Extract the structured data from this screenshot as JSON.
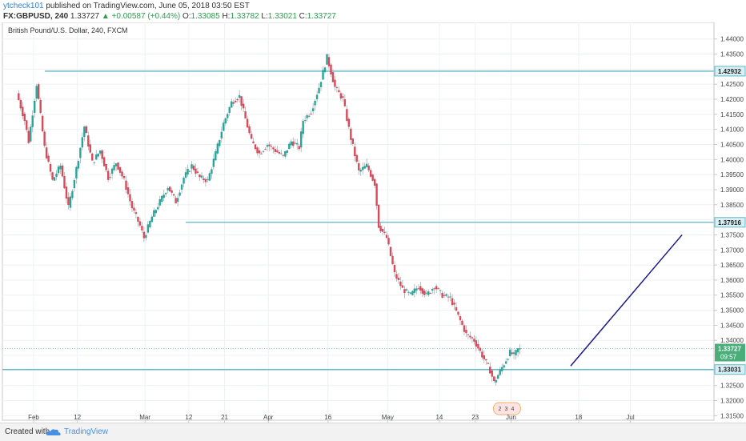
{
  "header": {
    "user": "ytcheck101",
    "published": "published on TradingView.com, June 05, 2018 03:50 EST",
    "symbol": "FX:GBPUSD, 240",
    "last": "1.33727",
    "change": "+0.00587 (+0.44%)",
    "o_label": "O:",
    "o_value": "1.33085",
    "h_label": "H:",
    "h_value": "1.33782",
    "l_label": "L:",
    "l_value": "1.33021",
    "c_label": "C:",
    "c_value": "1.33727"
  },
  "footer": {
    "created_with": "Created with",
    "brand": "TradingView"
  },
  "colors": {
    "up": "#26a69a",
    "down": "#d9495a",
    "hline": "#5fb7c8",
    "projection": "#1a1a8c",
    "dotted": "#7fd1c3"
  },
  "chart_data": {
    "type": "candlestick",
    "title": "British Pound/U.S. Dollar, 240, FXCM",
    "ylim": [
      1.3135,
      1.4455
    ],
    "y_ticks": [
      1.315,
      1.32,
      1.325,
      1.33,
      1.335,
      1.34,
      1.345,
      1.35,
      1.355,
      1.36,
      1.365,
      1.37,
      1.375,
      1.38,
      1.385,
      1.39,
      1.395,
      1.4,
      1.405,
      1.41,
      1.415,
      1.42,
      1.425,
      1.43,
      1.435,
      1.44
    ],
    "y_tick_labels": [
      "1.31500",
      "1.32000",
      "1.32500",
      "1.33000",
      "1.33500",
      "1.34000",
      "1.34500",
      "1.35000",
      "1.35500",
      "1.36000",
      "1.36500",
      "1.37000",
      "1.37500",
      "1.38000",
      "1.38500",
      "1.39000",
      "1.39500",
      "1.40000",
      "1.40500",
      "1.41000",
      "1.41500",
      "1.42000",
      "1.42500",
      "1.43000",
      "1.43500",
      "1.44000"
    ],
    "x_ticks": [
      {
        "label": "Feb",
        "day": 0
      },
      {
        "label": "12",
        "day": 11
      },
      {
        "label": "Mar",
        "day": 28
      },
      {
        "label": "12",
        "day": 39
      },
      {
        "label": "21",
        "day": 48
      },
      {
        "label": "Apr",
        "day": 59
      },
      {
        "label": "16",
        "day": 74
      },
      {
        "label": "May",
        "day": 89
      },
      {
        "label": "14",
        "day": 102
      },
      {
        "label": "23",
        "day": 111
      },
      {
        "label": "Jun",
        "day": 120
      },
      {
        "label": "18",
        "day": 137
      },
      {
        "label": "Jul",
        "day": 150
      }
    ],
    "horizontal_lines": [
      {
        "price": 1.42932,
        "label": "1.42932"
      },
      {
        "price": 1.37916,
        "label": "1.37916"
      },
      {
        "price": 1.33031,
        "label": "1.33031"
      }
    ],
    "current_price": {
      "price": 1.33727,
      "label": "1.33727",
      "countdown": "09:57"
    },
    "projection": {
      "from": {
        "day": 135,
        "price": 1.3315
      },
      "to": {
        "day": 163,
        "price": 1.375
      }
    },
    "event_markers": [
      "2",
      "3",
      "4"
    ],
    "price_path": [
      {
        "day": -4,
        "price": 1.422
      },
      {
        "day": -2,
        "price": 1.413
      },
      {
        "day": -1,
        "price": 1.406
      },
      {
        "day": 1,
        "price": 1.425
      },
      {
        "day": 3,
        "price": 1.404
      },
      {
        "day": 5,
        "price": 1.393
      },
      {
        "day": 7,
        "price": 1.398
      },
      {
        "day": 9,
        "price": 1.384
      },
      {
        "day": 11,
        "price": 1.397
      },
      {
        "day": 13,
        "price": 1.411
      },
      {
        "day": 15,
        "price": 1.399
      },
      {
        "day": 17,
        "price": 1.403
      },
      {
        "day": 19,
        "price": 1.394
      },
      {
        "day": 21,
        "price": 1.399
      },
      {
        "day": 23,
        "price": 1.393
      },
      {
        "day": 25,
        "price": 1.384
      },
      {
        "day": 27,
        "price": 1.378
      },
      {
        "day": 28,
        "price": 1.374
      },
      {
        "day": 30,
        "price": 1.381
      },
      {
        "day": 32,
        "price": 1.386
      },
      {
        "day": 34,
        "price": 1.391
      },
      {
        "day": 36,
        "price": 1.386
      },
      {
        "day": 38,
        "price": 1.394
      },
      {
        "day": 40,
        "price": 1.398
      },
      {
        "day": 42,
        "price": 1.394
      },
      {
        "day": 44,
        "price": 1.393
      },
      {
        "day": 46,
        "price": 1.402
      },
      {
        "day": 48,
        "price": 1.412
      },
      {
        "day": 50,
        "price": 1.419
      },
      {
        "day": 52,
        "price": 1.421
      },
      {
        "day": 53,
        "price": 1.416
      },
      {
        "day": 55,
        "price": 1.406
      },
      {
        "day": 57,
        "price": 1.402
      },
      {
        "day": 59,
        "price": 1.405
      },
      {
        "day": 61,
        "price": 1.403
      },
      {
        "day": 63,
        "price": 1.401
      },
      {
        "day": 65,
        "price": 1.406
      },
      {
        "day": 67,
        "price": 1.404
      },
      {
        "day": 68,
        "price": 1.413
      },
      {
        "day": 70,
        "price": 1.416
      },
      {
        "day": 72,
        "price": 1.424
      },
      {
        "day": 74,
        "price": 1.434
      },
      {
        "day": 76,
        "price": 1.424
      },
      {
        "day": 78,
        "price": 1.42
      },
      {
        "day": 80,
        "price": 1.407
      },
      {
        "day": 82,
        "price": 1.396
      },
      {
        "day": 84,
        "price": 1.398
      },
      {
        "day": 86,
        "price": 1.392
      },
      {
        "day": 87,
        "price": 1.378
      },
      {
        "day": 89,
        "price": 1.374
      },
      {
        "day": 91,
        "price": 1.362
      },
      {
        "day": 93,
        "price": 1.357
      },
      {
        "day": 95,
        "price": 1.355
      },
      {
        "day": 97,
        "price": 1.358
      },
      {
        "day": 99,
        "price": 1.355
      },
      {
        "day": 101,
        "price": 1.358
      },
      {
        "day": 103,
        "price": 1.355
      },
      {
        "day": 105,
        "price": 1.354
      },
      {
        "day": 107,
        "price": 1.348
      },
      {
        "day": 109,
        "price": 1.342
      },
      {
        "day": 111,
        "price": 1.34
      },
      {
        "day": 113,
        "price": 1.335
      },
      {
        "day": 115,
        "price": 1.33
      },
      {
        "day": 116,
        "price": 1.326
      },
      {
        "day": 118,
        "price": 1.331
      },
      {
        "day": 120,
        "price": 1.336
      },
      {
        "day": 121,
        "price": 1.335
      },
      {
        "day": 122,
        "price": 1.337
      }
    ]
  }
}
